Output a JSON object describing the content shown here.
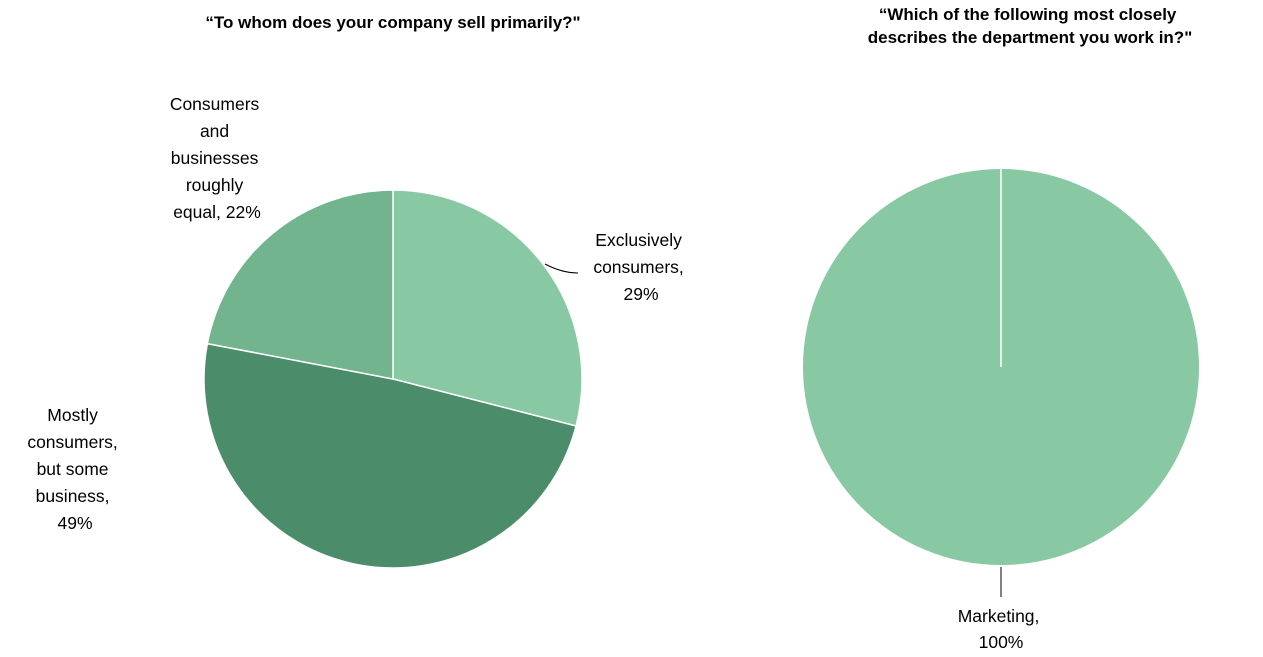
{
  "chart_data": [
    {
      "type": "pie",
      "title": "“To whom does your company sell primarily?\"",
      "slices": [
        {
          "label": "Exclusively consumers",
          "value": 29,
          "label_text": "Exclusively consumers, 29%"
        },
        {
          "label": "Mostly consumers, but some business",
          "value": 49,
          "label_text": "Mostly consumers, but some business, 49%"
        },
        {
          "label": "Consumers and businesses roughly equal",
          "value": 22,
          "label_text": "Consumers and businesses roughly equal, 22%"
        }
      ],
      "colors": [
        "#88c9a3",
        "#4b8d6a",
        "#72b48e"
      ],
      "unit": "%"
    },
    {
      "type": "pie",
      "title": "“Which of the following most closely describes the department you work in?\"",
      "slices": [
        {
          "label": "Marketing",
          "value": 100,
          "label_text": "Marketing, 100%"
        }
      ],
      "colors": [
        "#88c9a3"
      ],
      "unit": "%"
    }
  ]
}
